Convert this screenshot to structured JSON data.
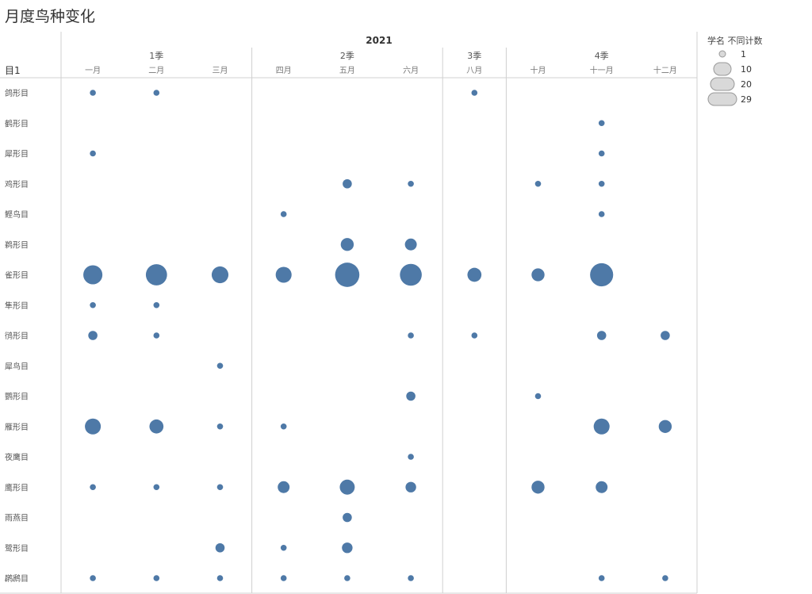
{
  "chart_data": {
    "type": "scatter",
    "title": "月度鸟种变化",
    "year": "2021",
    "row_header": "目1",
    "quarters": [
      {
        "label": "1季",
        "months": [
          "一月",
          "二月",
          "三月"
        ]
      },
      {
        "label": "2季",
        "months": [
          "四月",
          "五月",
          "六月"
        ]
      },
      {
        "label": "3季",
        "months": [
          "八月"
        ]
      },
      {
        "label": "4季",
        "months": [
          "十月",
          "十一月",
          "十二月"
        ]
      }
    ],
    "months": [
      "一月",
      "二月",
      "三月",
      "四月",
      "五月",
      "六月",
      "八月",
      "十月",
      "十一月",
      "十二月"
    ],
    "orders": [
      "鸽形目",
      "鹤形目",
      "犀形目",
      "鸡形目",
      "鲣鸟目",
      "鹈形目",
      "雀形目",
      "隼形目",
      "鸻形目",
      "犀鸟目",
      "鹦形目",
      "雁形目",
      "夜鹰目",
      "鹰形目",
      "雨燕目",
      "鹭形目",
      "䴙䴘目"
    ],
    "points": [
      {
        "order": "鸽形目",
        "month": "一月",
        "value": 1
      },
      {
        "order": "鸽形目",
        "month": "二月",
        "value": 1
      },
      {
        "order": "鸽形目",
        "month": "八月",
        "value": 1
      },
      {
        "order": "鹤形目",
        "month": "十一月",
        "value": 1
      },
      {
        "order": "犀形目",
        "month": "一月",
        "value": 1
      },
      {
        "order": "犀形目",
        "month": "十一月",
        "value": 1
      },
      {
        "order": "鸡形目",
        "month": "五月",
        "value": 3
      },
      {
        "order": "鸡形目",
        "month": "六月",
        "value": 1
      },
      {
        "order": "鸡形目",
        "month": "十月",
        "value": 1
      },
      {
        "order": "鸡形目",
        "month": "十一月",
        "value": 1
      },
      {
        "order": "鲣鸟目",
        "month": "四月",
        "value": 1
      },
      {
        "order": "鲣鸟目",
        "month": "十一月",
        "value": 1
      },
      {
        "order": "鹈形目",
        "month": "五月",
        "value": 6
      },
      {
        "order": "鹈形目",
        "month": "六月",
        "value": 5
      },
      {
        "order": "雀形目",
        "month": "一月",
        "value": 13
      },
      {
        "order": "雀形目",
        "month": "二月",
        "value": 16
      },
      {
        "order": "雀形目",
        "month": "三月",
        "value": 10
      },
      {
        "order": "雀形目",
        "month": "四月",
        "value": 9
      },
      {
        "order": "雀形目",
        "month": "五月",
        "value": 21
      },
      {
        "order": "雀形目",
        "month": "六月",
        "value": 17
      },
      {
        "order": "雀形目",
        "month": "八月",
        "value": 7
      },
      {
        "order": "雀形目",
        "month": "十月",
        "value": 6
      },
      {
        "order": "雀形目",
        "month": "十一月",
        "value": 19
      },
      {
        "order": "隼形目",
        "month": "一月",
        "value": 1
      },
      {
        "order": "隼形目",
        "month": "二月",
        "value": 1
      },
      {
        "order": "鸻形目",
        "month": "一月",
        "value": 3
      },
      {
        "order": "鸻形目",
        "month": "二月",
        "value": 1
      },
      {
        "order": "鸻形目",
        "month": "六月",
        "value": 1
      },
      {
        "order": "鸻形目",
        "month": "八月",
        "value": 1
      },
      {
        "order": "鸻形目",
        "month": "十一月",
        "value": 3
      },
      {
        "order": "鸻形目",
        "month": "十二月",
        "value": 3
      },
      {
        "order": "犀鸟目",
        "month": "三月",
        "value": 1
      },
      {
        "order": "鹦形目",
        "month": "六月",
        "value": 3
      },
      {
        "order": "鹦形目",
        "month": "十月",
        "value": 1
      },
      {
        "order": "雁形目",
        "month": "一月",
        "value": 9
      },
      {
        "order": "雁形目",
        "month": "二月",
        "value": 7
      },
      {
        "order": "雁形目",
        "month": "三月",
        "value": 1
      },
      {
        "order": "雁形目",
        "month": "四月",
        "value": 1
      },
      {
        "order": "雁形目",
        "month": "十一月",
        "value": 9
      },
      {
        "order": "雁形目",
        "month": "十二月",
        "value": 6
      },
      {
        "order": "夜鹰目",
        "month": "六月",
        "value": 1
      },
      {
        "order": "鹰形目",
        "month": "一月",
        "value": 1
      },
      {
        "order": "鹰形目",
        "month": "二月",
        "value": 1
      },
      {
        "order": "鹰形目",
        "month": "三月",
        "value": 1
      },
      {
        "order": "鹰形目",
        "month": "四月",
        "value": 5
      },
      {
        "order": "鹰形目",
        "month": "五月",
        "value": 8
      },
      {
        "order": "鹰形目",
        "month": "六月",
        "value": 4
      },
      {
        "order": "鹰形目",
        "month": "十月",
        "value": 6
      },
      {
        "order": "鹰形目",
        "month": "十一月",
        "value": 5
      },
      {
        "order": "雨燕目",
        "month": "五月",
        "value": 3
      },
      {
        "order": "鹭形目",
        "month": "三月",
        "value": 3
      },
      {
        "order": "鹭形目",
        "month": "四月",
        "value": 1
      },
      {
        "order": "鹭形目",
        "month": "五月",
        "value": 4
      },
      {
        "order": "䴙䴘目",
        "month": "一月",
        "value": 1
      },
      {
        "order": "䴙䴘目",
        "month": "二月",
        "value": 1
      },
      {
        "order": "䴙䴘目",
        "month": "三月",
        "value": 1
      },
      {
        "order": "䴙䴘目",
        "month": "四月",
        "value": 1
      },
      {
        "order": "䴙䴘目",
        "month": "五月",
        "value": 1
      },
      {
        "order": "䴙䴘目",
        "month": "六月",
        "value": 1
      },
      {
        "order": "䴙䴘目",
        "month": "十一月",
        "value": 1
      },
      {
        "order": "䴙䴘目",
        "month": "十二月",
        "value": 1
      }
    ],
    "legend": {
      "title": "学名 不同计数",
      "placement": "top-right",
      "entries": [
        {
          "label": "1",
          "value": 1
        },
        {
          "label": "10",
          "value": 10
        },
        {
          "label": "20",
          "value": 20
        },
        {
          "label": "29",
          "value": 29
        }
      ]
    },
    "mark_color": "#4e79a7",
    "legend_mark_color": "#d9d9d9",
    "grid": false
  }
}
